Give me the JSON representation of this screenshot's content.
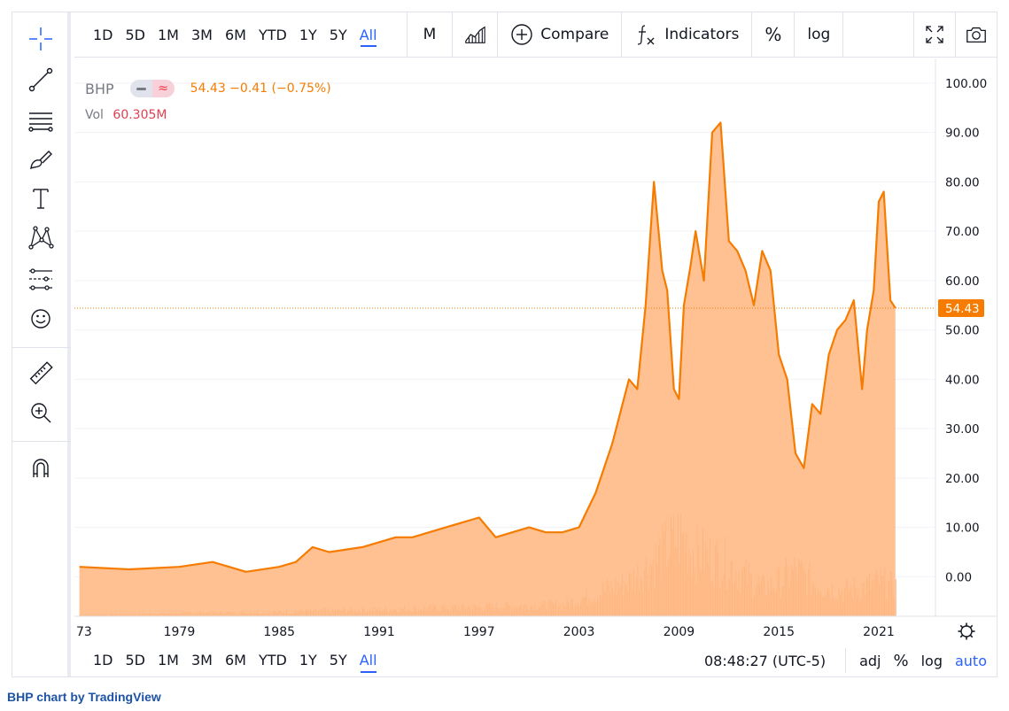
{
  "timeframes": [
    "1D",
    "5D",
    "1M",
    "3M",
    "6M",
    "YTD",
    "1Y",
    "5Y",
    "All"
  ],
  "active_timeframe": "All",
  "toolbar": {
    "interval": "M",
    "compare_label": "Compare",
    "indicators_label": "Indicators",
    "percent_label": "%",
    "log_label": "log"
  },
  "legend": {
    "symbol": "BHP",
    "price_text": "54.43 −0.41 (−0.75%)",
    "vol_label": "Vol",
    "vol_value": "60.305M"
  },
  "price_scale": {
    "labels": [
      "100.00",
      "90.00",
      "80.00",
      "70.00",
      "60.00",
      "50.00",
      "40.00",
      "30.00",
      "20.00",
      "10.00",
      "0.00"
    ],
    "last_price": "54.43"
  },
  "time_axis": [
    "73",
    "1979",
    "1985",
    "1991",
    "1997",
    "2003",
    "2009",
    "2015",
    "2021"
  ],
  "bottom": {
    "clock": "08:48:27 (UTC-5)",
    "adj": "adj",
    "percent": "%",
    "log": "log",
    "auto": "auto"
  },
  "attribution": "BHP chart by TradingView",
  "colors": {
    "line": "#f57c00",
    "area_fill": "#ffb67f",
    "volume": "#f0a070",
    "accent": "#2962ff"
  },
  "chart_data": {
    "type": "area",
    "ylim": [
      -8,
      105
    ],
    "x": [
      1973,
      1976,
      1979,
      1981,
      1983,
      1985,
      1986,
      1987,
      1988,
      1990,
      1992,
      1993,
      1995,
      1996,
      1997,
      1998,
      1999,
      2000,
      2001,
      2002,
      2003,
      2004,
      2005,
      2006,
      2006.5,
      2007,
      2007.5,
      2008,
      2008.3,
      2008.7,
      2009,
      2009.3,
      2009.7,
      2010,
      2010.5,
      2011,
      2011.5,
      2012,
      2012.5,
      2013,
      2013.5,
      2014,
      2014.5,
      2015,
      2015.5,
      2016,
      2016.5,
      2017,
      2017.5,
      2018,
      2018.5,
      2019,
      2019.5,
      2020,
      2020.3,
      2020.7,
      2021,
      2021.3,
      2021.7,
      2022
    ],
    "y": [
      2,
      1.5,
      2,
      3,
      1,
      2,
      3,
      6,
      5,
      6,
      8,
      8,
      10,
      11,
      12,
      8,
      9,
      10,
      9,
      9,
      10,
      17,
      27,
      40,
      38,
      55,
      80,
      62,
      58,
      38,
      36,
      55,
      63,
      70,
      60,
      90,
      92,
      68,
      66,
      62,
      55,
      66,
      62,
      45,
      40,
      25,
      22,
      35,
      33,
      45,
      50,
      52,
      56,
      38,
      50,
      58,
      76,
      78,
      56,
      54.43
    ],
    "volume_profile": {
      "x": [
        1973,
        1985,
        1995,
        2002,
        2004,
        2006,
        2008,
        2009,
        2010,
        2011,
        2012,
        2013,
        2014,
        2015,
        2016,
        2017,
        2018,
        2019,
        2020,
        2021,
        2022
      ],
      "y": [
        0.3,
        0.8,
        1.5,
        2.0,
        4.0,
        6.0,
        11.0,
        14.0,
        11.0,
        10.0,
        9.0,
        7.0,
        5.0,
        6.0,
        8.0,
        6.0,
        5.0,
        4.5,
        5.0,
        6.0,
        5.0
      ]
    }
  }
}
